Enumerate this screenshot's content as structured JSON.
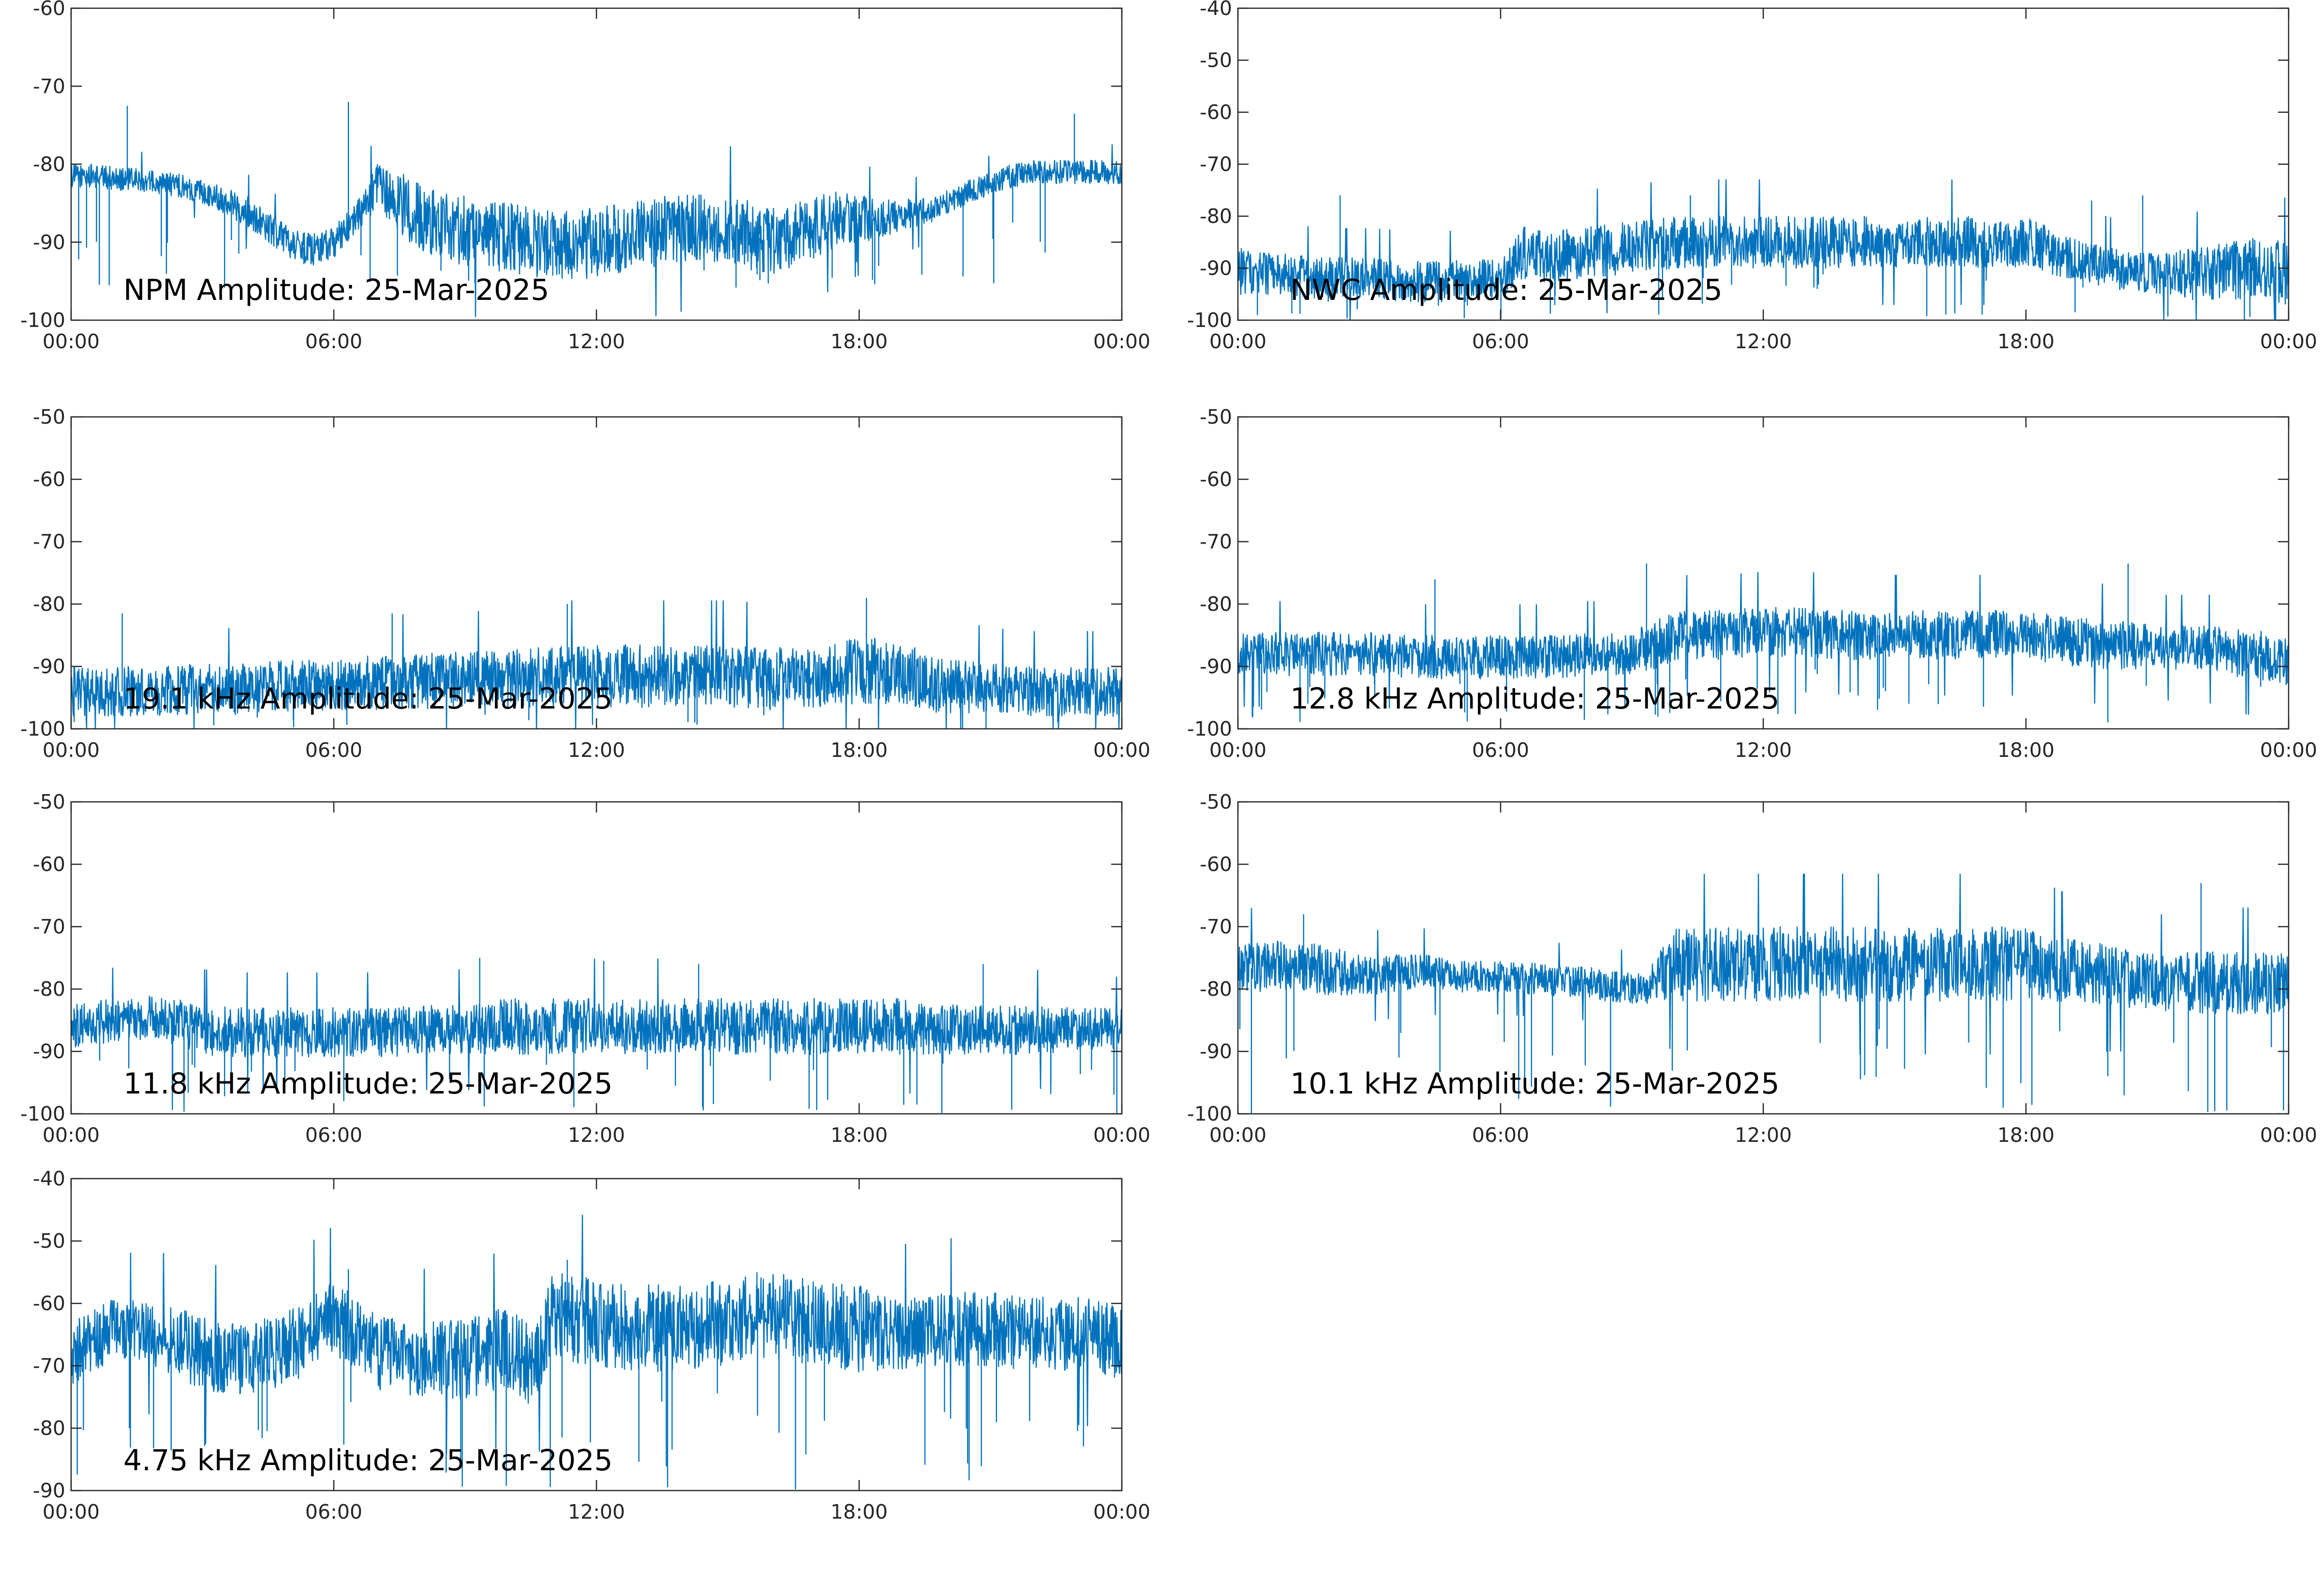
{
  "style": {
    "line_color": "#0072BD",
    "axis_color": "#262626",
    "background": "#ffffff"
  },
  "chart_data": [
    {
      "type": "line",
      "label": "NPM Amplitude: 25-Mar-2025",
      "ylim": [
        -100,
        -60
      ],
      "yticks": [
        -100,
        -90,
        -80,
        -70,
        -60
      ],
      "xlim": [
        "00:00",
        "24:00"
      ],
      "xticks": [
        "00:00",
        "06:00",
        "12:00",
        "18:00",
        "00:00"
      ],
      "grid": false,
      "series": [
        {
          "x": [
            "00:00",
            "00:30",
            "01:00",
            "01:30",
            "02:00",
            "02:30",
            "03:00",
            "03:30",
            "04:00",
            "04:30",
            "05:00",
            "05:30",
            "06:00",
            "06:30",
            "07:00",
            "07:30",
            "08:00",
            "08:30",
            "09:00",
            "09:30",
            "10:00",
            "10:30",
            "11:00",
            "11:30",
            "12:00",
            "12:30",
            "13:00",
            "13:30",
            "14:00",
            "14:30",
            "15:00",
            "15:30",
            "16:00",
            "16:30",
            "17:00",
            "17:30",
            "18:00",
            "18:30",
            "19:00",
            "19:30",
            "20:00",
            "20:30",
            "21:00",
            "21:30",
            "22:00",
            "22:30",
            "23:00",
            "23:30",
            "24:00"
          ],
          "y": [
            -81.5,
            -81.5,
            -81.8,
            -82,
            -82.3,
            -82.8,
            -83.5,
            -84.5,
            -86,
            -88,
            -90,
            -91,
            -90,
            -87,
            -83,
            -85,
            -87,
            -88,
            -88.5,
            -89,
            -89.5,
            -90,
            -90.5,
            -90.5,
            -90,
            -89.5,
            -89,
            -88.5,
            -88,
            -88,
            -88.5,
            -89,
            -90,
            -89,
            -88,
            -87,
            -87,
            -87,
            -86.5,
            -86,
            -85,
            -83.5,
            -82.5,
            -81.5,
            -81,
            -81,
            -81,
            -81,
            -81.2
          ],
          "noise": [
            1.5,
            1.5,
            1.5,
            1.5,
            1.5,
            1.5,
            1.5,
            1.8,
            2,
            2,
            2,
            2,
            2,
            2,
            3,
            4,
            4.5,
            4.5,
            4.5,
            4.5,
            4.5,
            4.5,
            4.5,
            4.5,
            4.5,
            4.5,
            4.5,
            4.5,
            4.5,
            4.5,
            4.5,
            4.5,
            4.5,
            4,
            4,
            3.5,
            3,
            2.5,
            2,
            1.8,
            1.6,
            1.5,
            1.5,
            1.5,
            1.5,
            1.5,
            1.5,
            1.5,
            1.5
          ],
          "spikes": [
            {
              "x": "01:17",
              "y": -72.5
            },
            {
              "x": "06:20",
              "y": -72
            },
            {
              "x": "22:55",
              "y": -73.5
            }
          ],
          "dip_top": -96
        }
      ]
    },
    {
      "type": "line",
      "label": "NWC Amplitude: 25-Mar-2025",
      "ylim": [
        -100,
        -40
      ],
      "yticks": [
        -100,
        -90,
        -80,
        -70,
        -60,
        -50,
        -40
      ],
      "xlim": [
        "00:00",
        "24:00"
      ],
      "xticks": [
        "00:00",
        "06:00",
        "12:00",
        "18:00",
        "00:00"
      ],
      "grid": false,
      "series": [
        {
          "x": [
            "00:00",
            "01:00",
            "02:00",
            "03:00",
            "04:00",
            "05:00",
            "06:00",
            "06:30",
            "07:00",
            "08:00",
            "09:00",
            "10:00",
            "11:00",
            "12:00",
            "13:00",
            "14:00",
            "15:00",
            "16:00",
            "17:00",
            "18:00",
            "19:00",
            "20:00",
            "21:00",
            "22:00",
            "23:00",
            "24:00"
          ],
          "y": [
            -91,
            -91,
            -92,
            -92,
            -92.5,
            -92.5,
            -92,
            -87,
            -88,
            -87,
            -86,
            -85,
            -85,
            -85,
            -85,
            -85,
            -85,
            -85,
            -85,
            -85,
            -88,
            -90,
            -91,
            -91,
            -90,
            -91
          ],
          "noise": [
            5,
            4,
            4,
            4,
            4,
            4,
            4,
            5,
            5,
            5,
            5,
            5,
            5,
            5,
            5,
            5,
            5,
            5,
            5,
            5,
            4,
            4,
            4,
            5,
            6,
            6
          ],
          "spikes": [
            {
              "x": "02:20",
              "y": -76
            },
            {
              "x": "10:20",
              "y": -76
            },
            {
              "x": "19:30",
              "y": -77
            },
            {
              "x": "20:40",
              "y": -76
            }
          ],
          "dip_top": -100
        }
      ]
    },
    {
      "type": "line",
      "label": "19.1 kHz Amplitude: 25-Mar-2025",
      "ylim": [
        -100,
        -50
      ],
      "yticks": [
        -100,
        -90,
        -80,
        -70,
        -60,
        -50
      ],
      "xlim": [
        "00:00",
        "24:00"
      ],
      "xticks": [
        "00:00",
        "06:00",
        "12:00",
        "18:00",
        "00:00"
      ],
      "grid": false,
      "series": [
        {
          "x": [
            "00:00",
            "01:00",
            "02:00",
            "03:00",
            "04:00",
            "05:00",
            "06:00",
            "07:00",
            "08:00",
            "09:00",
            "10:00",
            "11:00",
            "12:00",
            "13:00",
            "14:00",
            "15:00",
            "16:00",
            "17:00",
            "18:00",
            "19:00",
            "20:00",
            "21:00",
            "22:00",
            "23:00",
            "24:00"
          ],
          "y": [
            -94,
            -94,
            -94,
            -93.5,
            -93.5,
            -93,
            -93,
            -92.5,
            -92.5,
            -92,
            -92,
            -91.5,
            -91.5,
            -91.5,
            -91.5,
            -91.5,
            -92,
            -91.5,
            -90.5,
            -91,
            -93,
            -93.5,
            -94,
            -94,
            -94
          ],
          "noise": [
            4,
            4,
            4,
            4,
            4,
            4,
            4,
            4.5,
            4.5,
            4.5,
            4.5,
            5,
            5,
            5,
            5,
            5,
            5,
            5,
            5.5,
            5,
            4.5,
            4,
            4,
            4,
            4
          ],
          "spikes": [
            {
              "x": "01:10",
              "y": -81.5
            },
            {
              "x": "07:20",
              "y": -81.5
            },
            {
              "x": "11:20",
              "y": -80
            },
            {
              "x": "18:10",
              "y": -79
            }
          ],
          "dip_top": -100
        }
      ]
    },
    {
      "type": "line",
      "label": "12.8 kHz Amplitude: 25-Mar-2025",
      "ylim": [
        -100,
        -50
      ],
      "yticks": [
        -100,
        -90,
        -80,
        -70,
        -60,
        -50
      ],
      "xlim": [
        "00:00",
        "24:00"
      ],
      "xticks": [
        "00:00",
        "06:00",
        "12:00",
        "18:00",
        "00:00"
      ],
      "grid": false,
      "series": [
        {
          "x": [
            "00:00",
            "01:00",
            "02:00",
            "03:00",
            "04:00",
            "05:00",
            "06:00",
            "07:00",
            "08:00",
            "09:00",
            "09:20",
            "10:00",
            "11:00",
            "12:00",
            "13:00",
            "14:00",
            "15:00",
            "16:00",
            "17:00",
            "18:00",
            "19:00",
            "20:00",
            "21:00",
            "22:00",
            "23:00",
            "24:00"
          ],
          "y": [
            -88,
            -88,
            -88,
            -88,
            -88.5,
            -88.5,
            -88.5,
            -88.5,
            -88,
            -88,
            -87,
            -85,
            -85,
            -84.5,
            -84.5,
            -85,
            -85,
            -85,
            -85,
            -85,
            -86,
            -86.5,
            -87,
            -87,
            -88,
            -89
          ],
          "noise": [
            3.5,
            3.5,
            3.5,
            3.5,
            3.5,
            3.5,
            3.5,
            3.5,
            3.5,
            3.5,
            4,
            4,
            4,
            4,
            4,
            4,
            4,
            4,
            4,
            4,
            4,
            4,
            3.5,
            3.5,
            4,
            4
          ],
          "spikes": [
            {
              "x": "04:30",
              "y": -76
            },
            {
              "x": "09:20",
              "y": -73.5
            },
            {
              "x": "20:20",
              "y": -73.5
            }
          ],
          "dip_top": -99
        }
      ]
    },
    {
      "type": "line",
      "label": "11.8 kHz Amplitude: 25-Mar-2025",
      "ylim": [
        -100,
        -50
      ],
      "yticks": [
        -100,
        -90,
        -80,
        -70,
        -60,
        -50
      ],
      "xlim": [
        "00:00",
        "24:00"
      ],
      "xticks": [
        "00:00",
        "06:00",
        "12:00",
        "18:00",
        "00:00"
      ],
      "grid": false,
      "series": [
        {
          "x": [
            "00:00",
            "01:00",
            "02:00",
            "03:00",
            "04:00",
            "05:00",
            "06:00",
            "07:00",
            "08:00",
            "09:00",
            "10:00",
            "11:00",
            "12:00",
            "13:00",
            "14:00",
            "15:00",
            "16:00",
            "17:00",
            "18:00",
            "19:00",
            "20:00",
            "21:00",
            "22:00",
            "23:00",
            "24:00"
          ],
          "y": [
            -86,
            -85,
            -84.5,
            -86.5,
            -87,
            -87,
            -87,
            -87,
            -86.5,
            -86.5,
            -86,
            -86,
            -86,
            -86,
            -86,
            -86,
            -86,
            -86,
            -86,
            -86,
            -86.5,
            -86.5,
            -86.5,
            -86.5,
            -86.5
          ],
          "noise": [
            3.5,
            3.5,
            3.5,
            4,
            4,
            4,
            4,
            4,
            4,
            4,
            4.5,
            4.5,
            4.5,
            4.5,
            4.5,
            4.5,
            4.5,
            4.5,
            4.5,
            4.5,
            4,
            4,
            4,
            3.5,
            3.5
          ],
          "spikes": [
            {
              "x": "09:20",
              "y": -75
            },
            {
              "x": "12:10",
              "y": -75.5
            },
            {
              "x": "14:20",
              "y": -76
            },
            {
              "x": "20:50",
              "y": -76
            }
          ],
          "dip_top": -100
        }
      ]
    },
    {
      "type": "line",
      "label": "10.1 kHz Amplitude: 25-Mar-2025",
      "ylim": [
        -100,
        -50
      ],
      "yticks": [
        -100,
        -90,
        -80,
        -70,
        -60,
        -50
      ],
      "xlim": [
        "00:00",
        "24:00"
      ],
      "xticks": [
        "00:00",
        "06:00",
        "12:00",
        "18:00",
        "00:00"
      ],
      "grid": false,
      "series": [
        {
          "x": [
            "00:00",
            "01:00",
            "02:00",
            "03:00",
            "04:00",
            "05:00",
            "06:00",
            "07:00",
            "08:00",
            "09:00",
            "09:20",
            "10:00",
            "11:00",
            "12:00",
            "13:00",
            "14:00",
            "15:00",
            "16:00",
            "17:00",
            "18:00",
            "19:00",
            "20:00",
            "21:00",
            "22:00",
            "23:00",
            "24:00"
          ],
          "y": [
            -77,
            -76,
            -77,
            -78,
            -77,
            -78,
            -78,
            -78.5,
            -79,
            -80,
            -80,
            -76,
            -76,
            -76,
            -76,
            -76,
            -76,
            -76,
            -76,
            -76,
            -77,
            -78,
            -79,
            -79,
            -79,
            -79
          ],
          "noise": [
            4,
            4,
            4,
            3,
            3,
            2.5,
            2.5,
            2.5,
            2.5,
            2.5,
            2.5,
            6,
            6,
            6,
            6,
            6,
            6,
            6,
            6,
            6,
            5,
            5,
            4.5,
            5,
            5,
            5
          ],
          "spikes": [
            {
              "x": "01:30",
              "y": -68
            },
            {
              "x": "22:00",
              "y": -63
            }
          ],
          "dip_top": -100
        }
      ]
    },
    {
      "type": "line",
      "label": "4.75 kHz Amplitude: 25-Mar-2025",
      "ylim": [
        -90,
        -40
      ],
      "yticks": [
        -90,
        -80,
        -70,
        -60,
        -50,
        -40
      ],
      "xlim": [
        "00:00",
        "24:00"
      ],
      "xticks": [
        "00:00",
        "06:00",
        "12:00",
        "18:00",
        "00:00"
      ],
      "grid": false,
      "series": [
        {
          "x": [
            "00:00",
            "01:00",
            "02:00",
            "03:00",
            "04:00",
            "05:00",
            "06:00",
            "07:00",
            "08:00",
            "09:00",
            "10:00",
            "10:30",
            "11:00",
            "12:00",
            "13:00",
            "14:00",
            "15:00",
            "16:00",
            "17:00",
            "18:00",
            "19:00",
            "20:00",
            "21:00",
            "22:00",
            "23:00",
            "24:00"
          ],
          "y": [
            -68,
            -64,
            -65,
            -68,
            -69,
            -67,
            -62,
            -68,
            -69,
            -69,
            -67,
            -70,
            -62,
            -63,
            -64,
            -64,
            -63,
            -62,
            -63,
            -64,
            -65,
            -64,
            -64,
            -65,
            -65,
            -66
          ],
          "noise": [
            5,
            5,
            5.5,
            6,
            6,
            6,
            6,
            6,
            6,
            6.5,
            6.5,
            7,
            7,
            7,
            7,
            7,
            7,
            7,
            7,
            7,
            6,
            6,
            6,
            6,
            6,
            6
          ],
          "spikes": [
            {
              "x": "06:20",
              "y": -54.5
            },
            {
              "x": "11:20",
              "y": -53
            },
            {
              "x": "15:40",
              "y": -55
            }
          ],
          "dip_top": -90
        }
      ]
    }
  ]
}
